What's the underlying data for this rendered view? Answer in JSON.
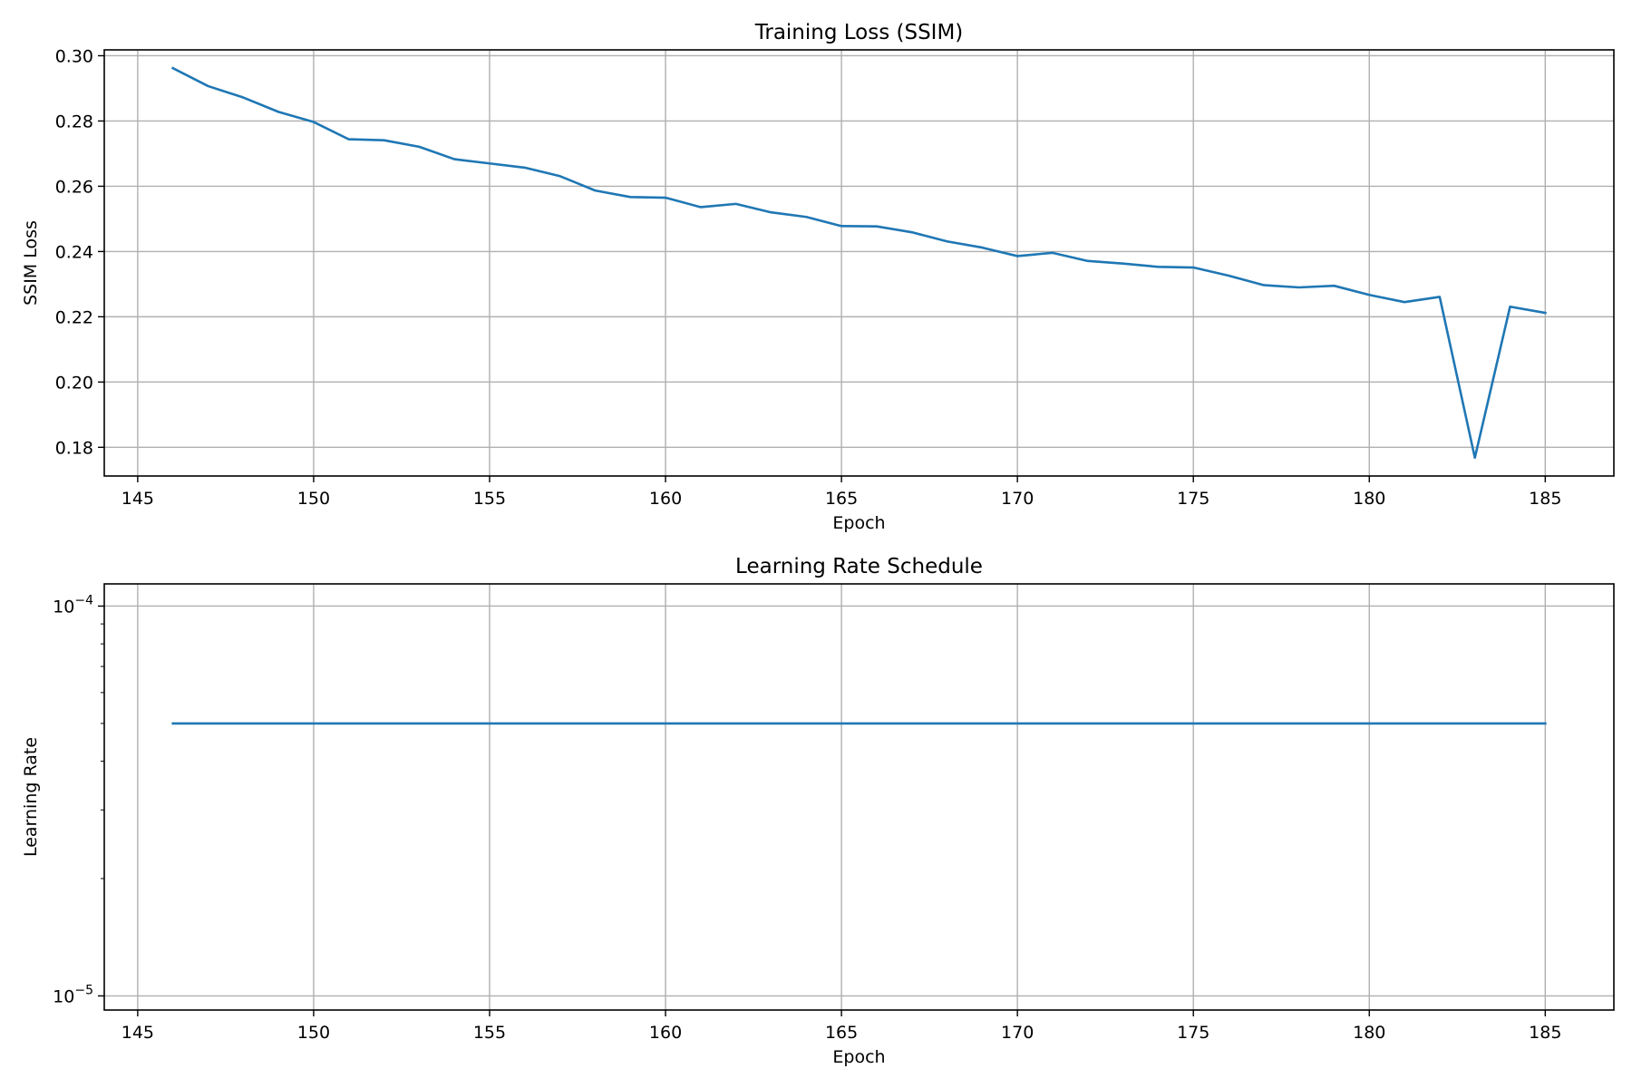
{
  "colors": {
    "series": "#1f77b4"
  },
  "chart_data": [
    {
      "type": "line",
      "title": "Training Loss (SSIM)",
      "xlabel": "Epoch",
      "ylabel": "SSIM Loss",
      "xlim": [
        144.05,
        186.95
      ],
      "ylim": [
        0.1712,
        0.3018
      ],
      "grid": true,
      "x_ticks": [
        145,
        150,
        155,
        160,
        165,
        170,
        175,
        180,
        185
      ],
      "x_tick_labels": [
        "145",
        "150",
        "155",
        "160",
        "165",
        "170",
        "175",
        "180",
        "185"
      ],
      "y_ticks": [
        0.18,
        0.2,
        0.22,
        0.24,
        0.26,
        0.28,
        0.3
      ],
      "y_tick_labels": [
        "0.18",
        "0.20",
        "0.22",
        "0.24",
        "0.26",
        "0.28",
        "0.30"
      ],
      "series": [
        {
          "x": [
            146,
            147,
            148,
            149,
            150,
            151,
            152,
            153,
            154,
            155,
            156,
            157,
            158,
            159,
            160,
            161,
            162,
            163,
            164,
            165,
            166,
            167,
            168,
            169,
            170,
            171,
            172,
            173,
            174,
            175,
            176,
            177,
            178,
            179,
            180,
            181,
            182,
            183,
            184,
            185
          ],
          "values": [
            0.2962,
            0.2907,
            0.2872,
            0.2828,
            0.2797,
            0.2744,
            0.2741,
            0.2721,
            0.2683,
            0.267,
            0.2657,
            0.2631,
            0.2587,
            0.2567,
            0.2565,
            0.2536,
            0.2546,
            0.252,
            0.2506,
            0.2478,
            0.2477,
            0.2459,
            0.2431,
            0.2412,
            0.2386,
            0.2396,
            0.2371,
            0.2363,
            0.2353,
            0.2351,
            0.2326,
            0.2297,
            0.229,
            0.2295,
            0.2267,
            0.2245,
            0.2261,
            0.1768,
            0.2231,
            0.2212
          ]
        }
      ]
    },
    {
      "type": "line",
      "title": "Learning Rate Schedule",
      "xlabel": "Epoch",
      "ylabel": "Learning Rate",
      "yscale": "log",
      "xlim": [
        144.05,
        186.95
      ],
      "ylim": [
        9.2e-06,
        0.000114
      ],
      "grid": true,
      "x_ticks": [
        145,
        150,
        155,
        160,
        165,
        170,
        175,
        180,
        185
      ],
      "x_tick_labels": [
        "145",
        "150",
        "155",
        "160",
        "165",
        "170",
        "175",
        "180",
        "185"
      ],
      "y_ticks": [
        1e-05,
        0.0001
      ],
      "y_tick_labels": [
        {
          "base": "10",
          "exp": "−5"
        },
        {
          "base": "10",
          "exp": "−4"
        }
      ],
      "series": [
        {
          "x": [
            146,
            147,
            148,
            149,
            150,
            151,
            152,
            153,
            154,
            155,
            156,
            157,
            158,
            159,
            160,
            161,
            162,
            163,
            164,
            165,
            166,
            167,
            168,
            169,
            170,
            171,
            172,
            173,
            174,
            175,
            176,
            177,
            178,
            179,
            180,
            181,
            182,
            183,
            184,
            185
          ],
          "values": [
            5e-05,
            5e-05,
            5e-05,
            5e-05,
            5e-05,
            5e-05,
            5e-05,
            5e-05,
            5e-05,
            5e-05,
            5e-05,
            5e-05,
            5e-05,
            5e-05,
            5e-05,
            5e-05,
            5e-05,
            5e-05,
            5e-05,
            5e-05,
            5e-05,
            5e-05,
            5e-05,
            5e-05,
            5e-05,
            5e-05,
            5e-05,
            5e-05,
            5e-05,
            5e-05,
            5e-05,
            5e-05,
            5e-05,
            5e-05,
            5e-05,
            5e-05,
            5e-05,
            5e-05,
            5e-05,
            5e-05
          ]
        }
      ]
    }
  ]
}
